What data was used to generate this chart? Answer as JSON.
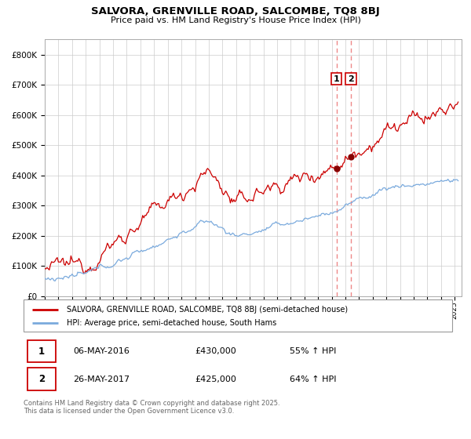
{
  "title": "SALVORA, GRENVILLE ROAD, SALCOMBE, TQ8 8BJ",
  "subtitle": "Price paid vs. HM Land Registry's House Price Index (HPI)",
  "legend_line1": "SALVORA, GRENVILLE ROAD, SALCOMBE, TQ8 8BJ (semi-detached house)",
  "legend_line2": "HPI: Average price, semi-detached house, South Hams",
  "footer": "Contains HM Land Registry data © Crown copyright and database right 2025.\nThis data is licensed under the Open Government Licence v3.0.",
  "sale1_date": "06-MAY-2016",
  "sale1_price": 430000,
  "sale1_hpi": "55% ↑ HPI",
  "sale1_year": 2016.35,
  "sale1_val": 430000,
  "sale2_date": "26-MAY-2017",
  "sale2_price": 425000,
  "sale2_hpi": "64% ↑ HPI",
  "sale2_year": 2017.4,
  "sale2_val": 425000,
  "red_color": "#cc0000",
  "blue_color": "#7aaadd",
  "marker_color": "#880000",
  "vline_color": "#ee8888",
  "ylim": [
    0,
    850000
  ],
  "yticks": [
    0,
    100000,
    200000,
    300000,
    400000,
    500000,
    600000,
    700000,
    800000
  ],
  "xlim_start": 1995.0,
  "xlim_end": 2025.5,
  "background_color": "#ffffff",
  "grid_color": "#cccccc",
  "title_fontsize": 9.5,
  "subtitle_fontsize": 8.0
}
